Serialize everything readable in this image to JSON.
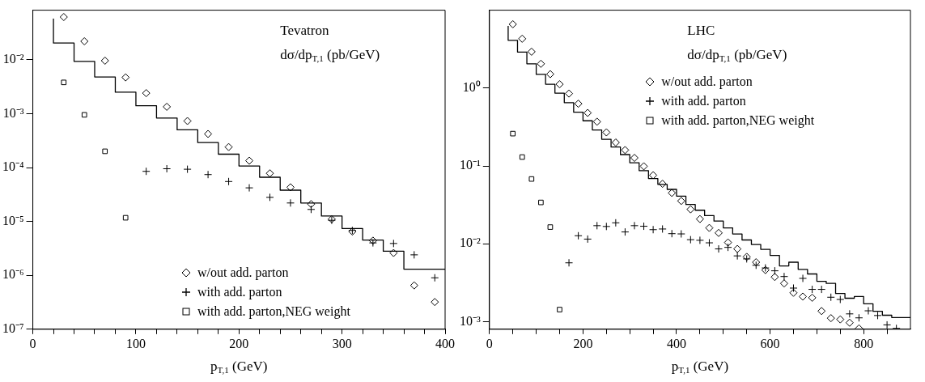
{
  "chart_data": [
    {
      "type": "scatter",
      "title": "Tevatron",
      "subtitle": "dσ/dp$_{T,1}$ (pb/GeV)",
      "xlabel": "p$_{T,1}$ (GeV)",
      "xlim": [
        0,
        400
      ],
      "xticks": [
        0,
        {
          "value": 20,
          "label": null
        },
        {
          "value": 40,
          "label": null
        },
        {
          "value": 60,
          "label": null
        },
        {
          "value": 80,
          "label": null
        },
        100,
        {
          "value": 120,
          "label": null
        },
        {
          "value": 140,
          "label": null
        },
        {
          "value": 160,
          "label": null
        },
        {
          "value": 180,
          "label": null
        },
        200,
        {
          "value": 220,
          "label": null
        },
        {
          "value": 240,
          "label": null
        },
        {
          "value": 260,
          "label": null
        },
        {
          "value": 280,
          "label": null
        },
        300,
        {
          "value": 320,
          "label": null
        },
        {
          "value": 340,
          "label": null
        },
        {
          "value": 360,
          "label": null
        },
        {
          "value": 380,
          "label": null
        },
        400
      ],
      "ylim": [
        1e-07,
        0.083
      ],
      "yticks": [
        {
          "value": 1e-07,
          "label": "10⁻⁷"
        },
        {
          "value": 1e-06,
          "label": "10⁻⁶"
        },
        {
          "value": 1e-05,
          "label": "10⁻⁵"
        },
        {
          "value": 0.0001,
          "label": "10⁻⁴"
        },
        {
          "value": 0.001,
          "label": "10⁻³"
        },
        {
          "value": 0.01,
          "label": "10⁻²"
        }
      ],
      "log": true,
      "grid": false,
      "legend": "bottom right",
      "series": [
        {
          "type": "step",
          "color": "#000000",
          "x": [
            20,
            40,
            60,
            80,
            100,
            120,
            140,
            160,
            180,
            200,
            220,
            240,
            260,
            280,
            300,
            320,
            340,
            360,
            380,
            400
          ],
          "values": [
            0.058,
            0.0204,
            0.0093,
            0.0048,
            0.0025,
            0.0014,
            0.00083,
            0.0005,
            0.00029,
            0.000177,
            0.000107,
            6.6e-05,
            3.8e-05,
            2.2e-05,
            1.26e-05,
            7.4e-06,
            4.5e-06,
            2.8e-06,
            1.3e-06,
            1.3e-06
          ]
        },
        {
          "name": "w/out add. parton",
          "marker": "diamond",
          "color": "#000000",
          "x": [
            30,
            50,
            70,
            90,
            110,
            130,
            150,
            170,
            190,
            210,
            230,
            250,
            270,
            290,
            310,
            330,
            350,
            370,
            390
          ],
          "values": [
            0.062,
            0.022,
            0.0096,
            0.0047,
            0.0024,
            0.00134,
            0.00073,
            0.00042,
            0.00024,
            0.000134,
            7.8e-05,
            4.3e-05,
            2.1e-05,
            1.1e-05,
            6.5e-06,
            4.4e-06,
            2.6e-06,
            6.5e-07,
            3.2e-07
          ]
        },
        {
          "name": "with add. parton",
          "marker": "cross",
          "color": "#000000",
          "x": [
            110,
            130,
            150,
            170,
            190,
            210,
            230,
            250,
            270,
            290,
            310,
            330,
            350,
            370,
            390
          ],
          "values": [
            8.5e-05,
            9.5e-05,
            9.3e-05,
            7.4e-05,
            5.5e-05,
            4.2e-05,
            2.8e-05,
            2.2e-05,
            1.67e-05,
            1.05e-05,
            6.8e-06,
            4e-06,
            3.9e-06,
            2.4e-06,
            9e-07
          ]
        },
        {
          "name": "with add. parton,NEG weight",
          "marker": "square",
          "color": "#000000",
          "x": [
            30,
            50,
            70,
            90
          ],
          "values": [
            0.0038,
            0.00095,
            0.0002,
            1.17e-05
          ]
        }
      ]
    },
    {
      "type": "scatter",
      "title": "LHC",
      "subtitle": "dσ/dp$_{T,1}$ (pb/GeV)",
      "xlabel": "p$_{T,1}$ (GeV)",
      "xlim": [
        0,
        900
      ],
      "xticks": [
        0,
        {
          "value": 50,
          "label": null
        },
        {
          "value": 100,
          "label": null
        },
        {
          "value": 150,
          "label": null
        },
        200,
        {
          "value": 250,
          "label": null
        },
        {
          "value": 300,
          "label": null
        },
        {
          "value": 350,
          "label": null
        },
        400,
        {
          "value": 450,
          "label": null
        },
        {
          "value": 500,
          "label": null
        },
        {
          "value": 550,
          "label": null
        },
        600,
        {
          "value": 650,
          "label": null
        },
        {
          "value": 700,
          "label": null
        },
        {
          "value": 750,
          "label": null
        },
        800,
        {
          "value": 850,
          "label": null
        }
      ],
      "ylim": [
        0.0008,
        10
      ],
      "yticks": [
        {
          "value": 0.001,
          "label": "10⁻³"
        },
        {
          "value": 0.01,
          "label": "10⁻²"
        },
        {
          "value": 0.1,
          "label": "10⁻¹"
        },
        {
          "value": 1,
          "label": "10⁰"
        }
      ],
      "log": true,
      "grid": false,
      "legend": "top right",
      "series": [
        {
          "type": "step",
          "color": "#000000",
          "x": [
            40,
            60,
            80,
            100,
            120,
            140,
            160,
            180,
            200,
            220,
            240,
            260,
            280,
            300,
            320,
            340,
            360,
            380,
            400,
            420,
            440,
            460,
            480,
            500,
            520,
            540,
            560,
            580,
            600,
            620,
            640,
            660,
            680,
            700,
            720,
            740,
            760,
            780,
            800,
            820,
            840,
            860,
            880,
            900
          ],
          "values": [
            6.3,
            4.1,
            2.9,
            2.05,
            1.5,
            1.12,
            0.86,
            0.65,
            0.49,
            0.38,
            0.29,
            0.22,
            0.175,
            0.14,
            0.11,
            0.087,
            0.069,
            0.058,
            0.05,
            0.041,
            0.032,
            0.027,
            0.023,
            0.0196,
            0.016,
            0.0134,
            0.0112,
            0.0098,
            0.0085,
            0.0071,
            0.0052,
            0.0058,
            0.0047,
            0.0041,
            0.0033,
            0.0031,
            0.0023,
            0.002,
            0.0021,
            0.0017,
            0.00136,
            0.00121,
            0.00113,
            0.00113
          ]
        },
        {
          "name": "w/out add. parton",
          "marker": "diamond",
          "color": "#000000",
          "x": [
            50,
            70,
            90,
            110,
            130,
            150,
            170,
            190,
            210,
            230,
            250,
            270,
            290,
            310,
            330,
            350,
            370,
            390,
            410,
            430,
            450,
            470,
            490,
            510,
            530,
            550,
            570,
            590,
            610,
            630,
            650,
            670,
            690,
            710,
            730,
            750,
            770,
            790
          ],
          "values": [
            6.6,
            4.3,
            2.93,
            2.05,
            1.51,
            1.12,
            0.85,
            0.63,
            0.48,
            0.37,
            0.27,
            0.2,
            0.16,
            0.127,
            0.099,
            0.076,
            0.059,
            0.045,
            0.0355,
            0.0277,
            0.0208,
            0.016,
            0.0138,
            0.0104,
            0.0086,
            0.0068,
            0.0058,
            0.0046,
            0.00375,
            0.0031,
            0.00235,
            0.0021,
            0.00203,
            0.00137,
            0.00111,
            0.00107,
            0.00097,
            0.00082
          ]
        },
        {
          "name": "with add. parton",
          "marker": "cross",
          "color": "#000000",
          "x": [
            170,
            190,
            210,
            230,
            250,
            270,
            290,
            310,
            330,
            350,
            370,
            390,
            410,
            430,
            450,
            470,
            490,
            510,
            530,
            550,
            570,
            590,
            610,
            630,
            650,
            670,
            690,
            710,
            730,
            750,
            770,
            790,
            810,
            830,
            850,
            870
          ],
          "values": [
            0.0057,
            0.0127,
            0.0115,
            0.0171,
            0.0167,
            0.0186,
            0.0142,
            0.0171,
            0.0168,
            0.0152,
            0.0155,
            0.0135,
            0.0134,
            0.0113,
            0.0111,
            0.0103,
            0.0086,
            0.009,
            0.007,
            0.0064,
            0.0053,
            0.0049,
            0.0045,
            0.0038,
            0.0027,
            0.0036,
            0.0026,
            0.0026,
            0.00206,
            0.00193,
            0.00126,
            0.00112,
            0.00138,
            0.0012,
            0.00091,
            0.00082
          ]
        },
        {
          "name": "with add. parton,NEG weight",
          "marker": "square",
          "color": "#000000",
          "x": [
            50,
            70,
            90,
            110,
            130,
            150
          ],
          "values": [
            0.26,
            0.13,
            0.068,
            0.034,
            0.0164,
            0.00143
          ]
        }
      ]
    }
  ]
}
